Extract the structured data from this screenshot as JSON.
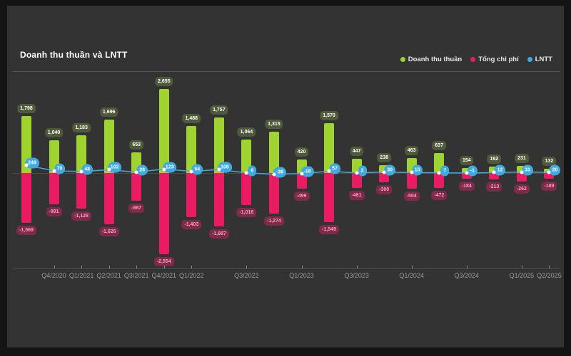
{
  "title": "Doanh thu thuần và LNTT",
  "colors": {
    "background": "#141414",
    "panel": "#333333",
    "title_text": "#ffffff",
    "legend_text": "#e9e9e9",
    "axis_text": "#9a9a9a",
    "top_border": "#55565a",
    "zero_line": "#5e6049",
    "axis_line": "#4c4c4c",
    "green": "#9fd330",
    "green_label_bg": "#4e5a3a",
    "green_label_text": "#ffffff",
    "pink": "#ea1a63",
    "pink_label_bg": "#7d2a4b",
    "pink_label_text": "#ff9dc0",
    "cyan": "#3fa9e0",
    "lntt_label_text": "#ffffff"
  },
  "chart_data": {
    "type": "bar",
    "title": "Doanh thu thuần và LNTT",
    "categories": [
      "Q3/2020",
      "Q4/2020",
      "Q1/2021",
      "Q2/2021",
      "Q3/2021",
      "Q4/2021",
      "Q1/2022",
      "Q2/2022",
      "Q3/2022",
      "Q4/2022",
      "Q1/2023",
      "Q2/2023",
      "Q3/2023",
      "Q4/2023",
      "Q1/2024",
      "Q2/2024",
      "Q3/2024",
      "Q4/2024",
      "Q1/2025",
      "Q2/2025"
    ],
    "x_tick_labels": [
      "Q4/2020",
      "Q1/2021",
      "Q2/2021",
      "Q3/2021",
      "Q4/2021",
      "Q1/2022",
      "Q3/2022",
      "Q1/2023",
      "Q3/2023",
      "Q1/2024",
      "Q3/2024",
      "Q1/2025",
      "Q2/2025"
    ],
    "labeled_indices": [
      1,
      2,
      3,
      4,
      5,
      6,
      8,
      10,
      12,
      14,
      16,
      18,
      19
    ],
    "series": [
      {
        "name": "Doanh thu thuần",
        "type": "bar",
        "color": "#9fd330",
        "values": [
          1798,
          1040,
          1183,
          1696,
          653,
          2655,
          1488,
          1757,
          1064,
          1315,
          420,
          1570,
          447,
          238,
          463,
          637,
          154,
          192,
          231,
          132
        ]
      },
      {
        "name": "Tổng chi phí",
        "type": "bar",
        "color": "#ea1a63",
        "values": [
          -1569,
          -991,
          -1128,
          -1626,
          -887,
          -2554,
          -1403,
          -1687,
          -1016,
          -1274,
          -499,
          -1549,
          -481,
          -300,
          -504,
          -472,
          -184,
          -213,
          -262,
          -189
        ]
      },
      {
        "name": "LNTT",
        "type": "line",
        "color": "#3fa9e0",
        "values": [
          249,
          70,
          48,
          102,
          28,
          123,
          54,
          108,
          6,
          -38,
          -18,
          57,
          2,
          30,
          15,
          7,
          -1,
          12,
          33,
          20
        ]
      }
    ],
    "ylim": [
      -2700,
      2800
    ],
    "grid": "off",
    "legend_position": "top-right",
    "data_labels": "on"
  }
}
